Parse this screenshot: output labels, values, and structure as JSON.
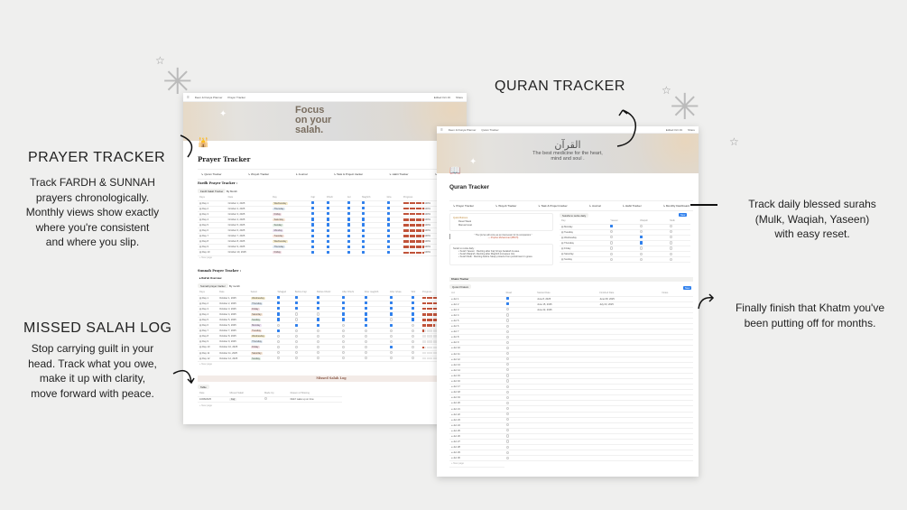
{
  "annotations": {
    "prayer_heading": "PRAYER TRACKER",
    "prayer_desc": [
      "Track FARDH & SUNNAH",
      "prayers chronologically.",
      "Monthly views show exactly",
      "where you're consistent",
      "and where you slip."
    ],
    "missed_heading": "MISSED SALAH LOG",
    "missed_desc": [
      "Stop carrying guilt in your",
      "head. Track what you owe,",
      "make it up with clarity,",
      "move forward with peace."
    ],
    "quran_heading": "QURAN  TRACKER",
    "surah_desc": [
      "Track daily blessed surahs",
      "(Mulk, Waqiah, Yaseen)",
      "with easy reset."
    ],
    "khatm_desc": [
      "Finally finish that Khatm you've",
      "been putting off for months."
    ]
  },
  "prayer_page": {
    "breadcrumb": [
      "Deen & Dunya Planner",
      "Prayer Tracker"
    ],
    "topbar_right": [
      "Edited Oct 19",
      "Share"
    ],
    "banner_text": [
      "Focus",
      "on your",
      "salah."
    ],
    "title": "Prayer Tracker",
    "nav": [
      "Quran Tracker",
      "Wuyub Tracker",
      "Journal",
      "Task & Project tracker",
      "Habit Tracker",
      "Monthly Dashboard"
    ],
    "fardh_title": "Fardh Prayer Tracker :",
    "fardh_views": [
      "Fardh Salah Tracker",
      "By Month"
    ],
    "fardh_columns": [
      "Days",
      "Date",
      "Day",
      "Fajr",
      "Dhuhr",
      "Asr",
      "Maghrib",
      "Isha",
      "Progress"
    ],
    "fardh_rows": [
      {
        "d": "Day 1",
        "date": "October 1, 2025",
        "day": "Wednesday",
        "c": [
          1,
          1,
          1,
          1,
          1
        ],
        "p": 100
      },
      {
        "d": "Day 2",
        "date": "October 2, 2025",
        "day": "Thursday",
        "c": [
          1,
          1,
          1,
          1,
          1
        ],
        "p": 100
      },
      {
        "d": "Day 3",
        "date": "October 3, 2025",
        "day": "Friday",
        "c": [
          1,
          1,
          1,
          1,
          1
        ],
        "p": 100
      },
      {
        "d": "Day 4",
        "date": "October 4, 2025",
        "day": "Saturday",
        "c": [
          1,
          1,
          1,
          1,
          1
        ],
        "p": 100
      },
      {
        "d": "Day 5",
        "date": "October 5, 2025",
        "day": "Sunday",
        "c": [
          1,
          1,
          1,
          1,
          1
        ],
        "p": 100
      },
      {
        "d": "Day 6",
        "date": "October 6, 2025",
        "day": "Monday",
        "c": [
          1,
          1,
          1,
          1,
          1
        ],
        "p": 100
      },
      {
        "d": "Day 7",
        "date": "October 7, 2025",
        "day": "Tuesday",
        "c": [
          1,
          1,
          1,
          1,
          1
        ],
        "p": 100
      },
      {
        "d": "Day 8",
        "date": "October 8, 2025",
        "day": "Wednesday",
        "c": [
          1,
          1,
          1,
          1,
          1
        ],
        "p": 100
      },
      {
        "d": "Day 9",
        "date": "October 9, 2025",
        "day": "Thursday",
        "c": [
          1,
          1,
          1,
          1,
          1
        ],
        "p": 100
      },
      {
        "d": "Day 10",
        "date": "October 10, 2025",
        "day": "Friday",
        "c": [
          1,
          1,
          1,
          1,
          1
        ],
        "p": 100
      }
    ],
    "new_page": "+ New page",
    "sunnah_title": "Sunnah Prayer Tracker :",
    "sunnah_toggle": "Rak'ah Overview",
    "sunnah_views": [
      "Sunnah prayer tracker",
      "By month"
    ],
    "sunnah_columns": [
      "Days",
      "Date",
      "Select",
      "Tahajjud",
      "Before Fajr",
      "Before Dhuhr",
      "After Dhuhr",
      "After maghrib",
      "After Ishaa",
      "Witr",
      "Progress"
    ],
    "sunnah_rows": [
      {
        "d": "Day 1",
        "date": "October 1, 2025",
        "day": "Wednesday",
        "c": [
          1,
          1,
          1,
          1,
          1,
          1,
          1
        ],
        "p": 100
      },
      {
        "d": "Day 2",
        "date": "October 2, 2025",
        "day": "Thursday",
        "c": [
          1,
          1,
          1,
          1,
          1,
          1,
          1
        ],
        "p": 100
      },
      {
        "d": "Day 3",
        "date": "October 3, 2025",
        "day": "Friday",
        "c": [
          1,
          1,
          1,
          1,
          1,
          1,
          1
        ],
        "p": 100
      },
      {
        "d": "Day 4",
        "date": "October 4, 2025",
        "day": "Saturday",
        "c": [
          1,
          0,
          0,
          1,
          1,
          1,
          1
        ],
        "p": 71
      },
      {
        "d": "Day 5",
        "date": "October 5, 2025",
        "day": "Sunday",
        "c": [
          1,
          0,
          1,
          1,
          1,
          0,
          1
        ],
        "p": 71
      },
      {
        "d": "Day 6",
        "date": "October 6, 2025",
        "day": "Monday",
        "c": [
          0,
          1,
          1,
          0,
          1,
          1,
          0
        ],
        "p": 57
      },
      {
        "d": "Day 7",
        "date": "October 7, 2025",
        "day": "Tuesday",
        "c": [
          1,
          0,
          0,
          0,
          0,
          0,
          0
        ],
        "p": 14
      },
      {
        "d": "Day 8",
        "date": "October 8, 2025",
        "day": "Wednesday",
        "c": [
          0,
          0,
          0,
          0,
          0,
          0,
          0
        ],
        "p": 0
      },
      {
        "d": "Day 9",
        "date": "October 9, 2025",
        "day": "Thursday",
        "c": [
          0,
          0,
          0,
          0,
          0,
          0,
          0
        ],
        "p": 0
      },
      {
        "d": "Day 10",
        "date": "October 10, 2025",
        "day": "Friday",
        "c": [
          0,
          0,
          0,
          0,
          0,
          1,
          0
        ],
        "p": 14
      },
      {
        "d": "Day 11",
        "date": "October 11, 2025",
        "day": "Saturday",
        "c": [
          0,
          0,
          0,
          0,
          0,
          0,
          0
        ],
        "p": 0
      },
      {
        "d": "Day 12",
        "date": "October 12, 2025",
        "day": "Sunday",
        "c": [
          0,
          0,
          0,
          0,
          0,
          0,
          0
        ],
        "p": 0
      }
    ],
    "missed_title": "Missed Salah Log",
    "missed_view": "Table",
    "missed_columns": [
      "Date",
      "Missed Salah",
      "Made Up",
      "Reason of Missing"
    ],
    "missed_rows": [
      {
        "date": "10/08/2025",
        "salah": "Fajr",
        "made": 0,
        "reason": "Didn't wake up on time"
      }
    ]
  },
  "quran_page": {
    "breadcrumb": [
      "Deen & Dunya Planner",
      "Quran Tracker"
    ],
    "topbar_right": [
      "Edited Oct 19",
      "Share"
    ],
    "banner_arabic": "القرآن",
    "banner_sub": [
      "The best medicine for the heart,",
      "mind and soul ."
    ],
    "title": "Quran Tracker",
    "nav": [
      "Prayer Tracker",
      "Wuyub Tracker",
      "Task & Project tracker",
      "Journal",
      "Habit Tracker",
      "Monthly Dashboard"
    ],
    "quick_buttons_title": "Quick Buttons",
    "quick_buttons": [
      "Reset Week",
      "Manual reset"
    ],
    "quote": "\" The Qur'an will come as an intercessor for its companions \"",
    "quote_src": "— Prophet Muhammad (PBUH)",
    "surahs_title": "Surah to recite daily :",
    "surahs": [
      "Surah Yaseen : Reciting after Fajr brings barakah & ease.",
      "Surah Waqi'ah: Reciting after Maghrib increases rizq.",
      "Surah Mulk : Reciting before Sleep protects from punishment in grave."
    ],
    "weekly_view": "Surahs to recite daily",
    "weekly_columns": [
      "Day",
      "Yaseen",
      "Waqiah",
      "Mulk"
    ],
    "weekly_rows": [
      {
        "day": "Monday",
        "c": [
          1,
          0,
          0
        ]
      },
      {
        "day": "Tuesday",
        "c": [
          0,
          0,
          0
        ]
      },
      {
        "day": "Wednesday",
        "c": [
          0,
          1,
          0
        ]
      },
      {
        "day": "Thursday",
        "c": [
          0,
          1,
          0
        ]
      },
      {
        "day": "Friday",
        "c": [
          0,
          0,
          0
        ]
      },
      {
        "day": "Saturday",
        "c": [
          0,
          0,
          0
        ]
      },
      {
        "day": "Sunday",
        "c": [
          0,
          0,
          0
        ]
      }
    ],
    "new_label": "New",
    "khatm_title": "Khatm Tracker",
    "khatm_view": "Quran Khatam",
    "khatm_columns": [
      "Juz",
      "Read",
      "Started Date",
      "Finished Date",
      "Notes"
    ],
    "khatm_started": [
      "June 8, 2025",
      "June 15, 2025",
      "June 22, 2025"
    ],
    "khatm_finished": [
      "June 08, 2025",
      "July 03, 2025"
    ],
    "khatm_read": [
      1,
      1
    ],
    "khatm_count": 30,
    "new_page": "+ New page"
  },
  "colors": {
    "checkbox": "#2f80ed",
    "progress": "#c0533a",
    "background": "#efefee"
  }
}
